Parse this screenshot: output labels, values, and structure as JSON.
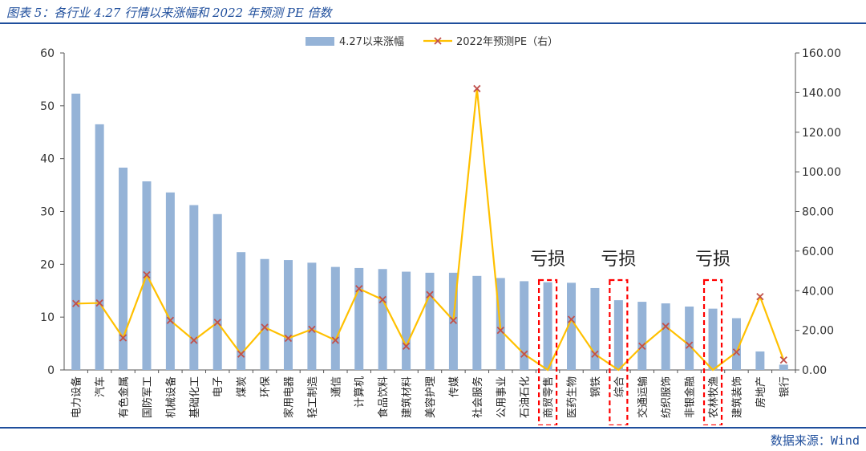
{
  "header": {
    "title": "图表 5：各行业 4.27 行情以来涨幅和 2022 年预测 PE 倍数"
  },
  "footer": {
    "source": "数据来源：Wind"
  },
  "colors": {
    "bar": "#95b3d7",
    "line": "#ffc000",
    "marker": "#c0504d",
    "highlight": "#ff0000",
    "accent": "#1f4e9c"
  },
  "chart_data": {
    "type": "bar",
    "categories": [
      "电力设备",
      "汽车",
      "有色金属",
      "国防军工",
      "机械设备",
      "基础化工",
      "电子",
      "煤炭",
      "环保",
      "家用电器",
      "轻工制造",
      "通信",
      "计算机",
      "食品饮料",
      "建筑材料",
      "美容护理",
      "传媒",
      "社会服务",
      "公用事业",
      "石油石化",
      "商贸零售",
      "医药生物",
      "钢铁",
      "综合",
      "交通运输",
      "纺织服饰",
      "非银金融",
      "农林牧渔",
      "建筑装饰",
      "房地产",
      "银行"
    ],
    "series": [
      {
        "name": "4.27以来涨幅",
        "type": "bar",
        "axis": "left",
        "values": [
          52.3,
          46.5,
          38.3,
          35.7,
          33.6,
          31.2,
          29.5,
          22.3,
          21.0,
          20.8,
          20.3,
          19.5,
          19.3,
          19.1,
          18.6,
          18.4,
          18.4,
          17.8,
          17.4,
          16.8,
          16.6,
          16.5,
          15.5,
          13.2,
          12.9,
          12.6,
          12.0,
          11.6,
          9.8,
          3.5,
          1.0
        ]
      },
      {
        "name": "2022年预测PE（右）",
        "type": "line",
        "axis": "right",
        "values": [
          33.5,
          33.8,
          16.2,
          48.0,
          25.0,
          15.0,
          24.0,
          8.0,
          21.5,
          16.0,
          20.5,
          15.0,
          41.0,
          35.5,
          12.0,
          38.0,
          25.0,
          142.0,
          20.0,
          8.0,
          null,
          25.5,
          8.0,
          null,
          12.0,
          22.0,
          12.5,
          null,
          9.0,
          37.0,
          5.0
        ]
      }
    ],
    "y_left": {
      "min": 0,
      "max": 60,
      "ticks": [
        "0",
        "10",
        "20",
        "30",
        "40",
        "50",
        "60"
      ]
    },
    "y_right": {
      "min": 0,
      "max": 160,
      "ticks": [
        "0.00",
        "20.00",
        "40.00",
        "60.00",
        "80.00",
        "100.00",
        "120.00",
        "140.00",
        "160.00"
      ]
    },
    "legend_position": "top-center",
    "grid": false,
    "highlighted": [
      {
        "category": "商贸零售",
        "note": "亏损"
      },
      {
        "category": "综合",
        "note": "亏损"
      },
      {
        "category": "农林牧渔",
        "note": "亏损"
      }
    ]
  }
}
